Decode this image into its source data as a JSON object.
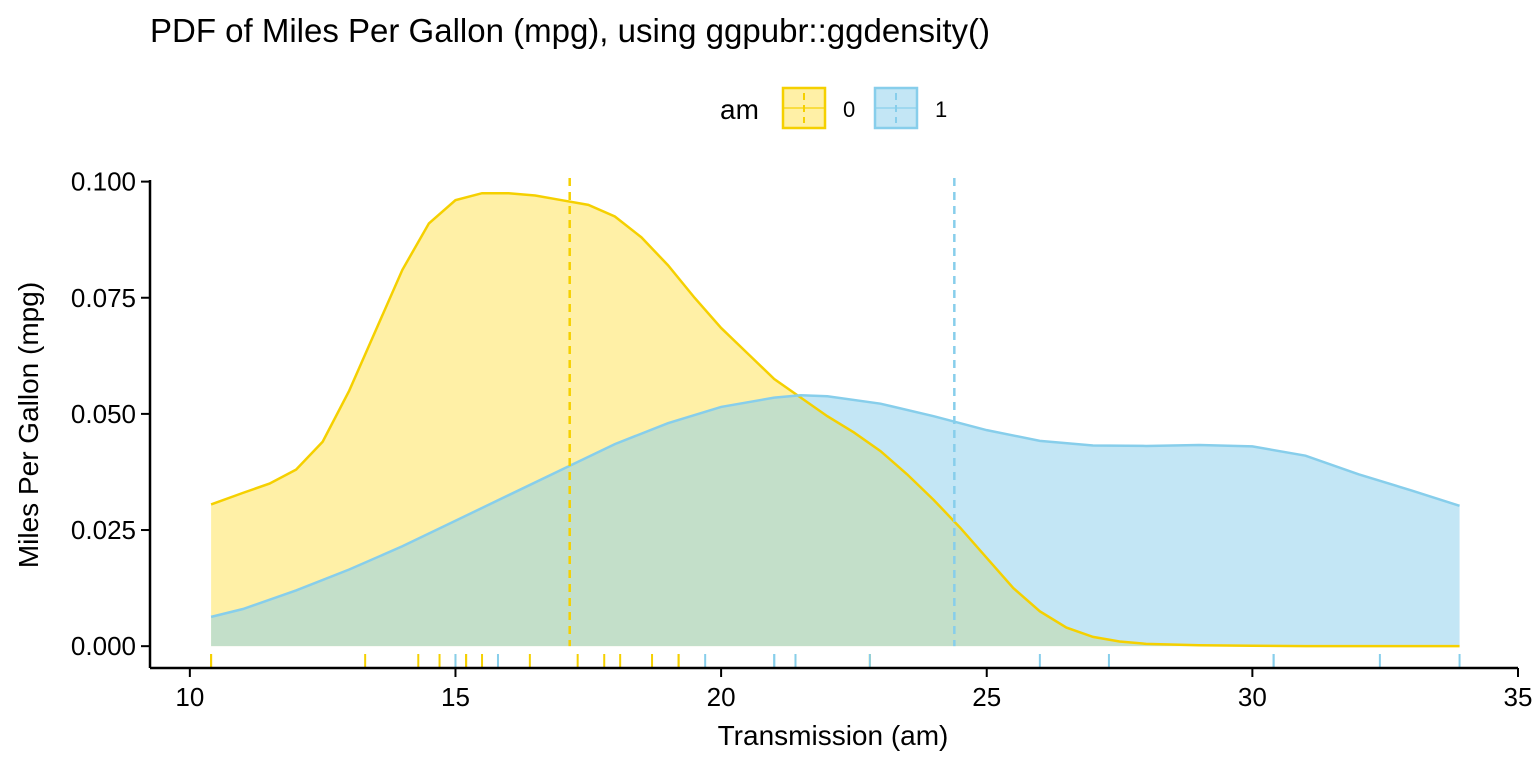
{
  "chart_data": {
    "type": "area",
    "title": "PDF of Miles Per Gallon (mpg), using ggpubr::ggdensity()",
    "xlabel": "Transmission (am)",
    "ylabel": "Miles Per Gallon (mpg)",
    "xlim": [
      9.25,
      35
    ],
    "ylim": [
      -0.0047,
      0.1025
    ],
    "x_ticks": [
      10,
      15,
      20,
      25,
      30,
      35
    ],
    "x_tick_labels": [
      "10",
      "15",
      "20",
      "25",
      "30",
      "35"
    ],
    "y_ticks": [
      0,
      0.025,
      0.05,
      0.075,
      0.1
    ],
    "y_tick_labels": [
      "0.000",
      "0.025",
      "0.050",
      "0.075",
      "0.100"
    ],
    "grid": false,
    "legend": {
      "title": "am",
      "position": "top"
    },
    "series": [
      {
        "name": "0",
        "color": "#F5D000",
        "fill": "#FFE14D",
        "mean": 17.15,
        "x": [
          10.4,
          11,
          11.5,
          12,
          12.5,
          13,
          13.5,
          14,
          14.5,
          15,
          15.5,
          16,
          16.5,
          17,
          17.5,
          18,
          18.5,
          19,
          19.5,
          20,
          20.5,
          21,
          21.5,
          22,
          22.5,
          23,
          23.5,
          24,
          24.5,
          25,
          25.5,
          26,
          26.5,
          27,
          27.5,
          28,
          29,
          30,
          31,
          32,
          33,
          33.9
        ],
        "y": [
          0.0305,
          0.033,
          0.035,
          0.038,
          0.044,
          0.055,
          0.068,
          0.081,
          0.091,
          0.096,
          0.0975,
          0.0975,
          0.097,
          0.096,
          0.095,
          0.0925,
          0.088,
          0.082,
          0.075,
          0.0685,
          0.063,
          0.0575,
          0.0535,
          0.0495,
          0.046,
          0.042,
          0.037,
          0.0315,
          0.0255,
          0.019,
          0.0125,
          0.0075,
          0.004,
          0.002,
          0.001,
          0.0005,
          0.0002,
          0.0001,
          0,
          0,
          0,
          0
        ]
      },
      {
        "name": "1",
        "color": "#87CEEB",
        "fill": "#87CEEB",
        "mean": 24.39,
        "x": [
          10.4,
          11,
          12,
          13,
          14,
          15,
          16,
          17,
          18,
          19,
          20,
          21,
          21.5,
          22,
          23,
          24,
          25,
          26,
          27,
          28,
          29,
          30,
          31,
          32,
          33,
          33.9
        ],
        "y": [
          0.0063,
          0.008,
          0.012,
          0.0165,
          0.0215,
          0.027,
          0.0325,
          0.038,
          0.0435,
          0.048,
          0.0515,
          0.0535,
          0.054,
          0.0538,
          0.0522,
          0.0495,
          0.0465,
          0.0442,
          0.0432,
          0.0431,
          0.0433,
          0.043,
          0.041,
          0.037,
          0.0335,
          0.0302
        ]
      }
    ],
    "rug": {
      "0": [
        10.4,
        10.4,
        13.3,
        14.3,
        14.7,
        15.0,
        15.2,
        15.2,
        15.5,
        16.4,
        17.3,
        17.8,
        18.1,
        18.7,
        19.2,
        19.2,
        21.4,
        22.8
      ],
      "1": [
        15.0,
        15.8,
        19.7,
        21.0,
        21.0,
        21.4,
        22.8,
        26.0,
        27.3,
        30.4,
        30.4,
        32.4,
        33.9
      ]
    }
  }
}
